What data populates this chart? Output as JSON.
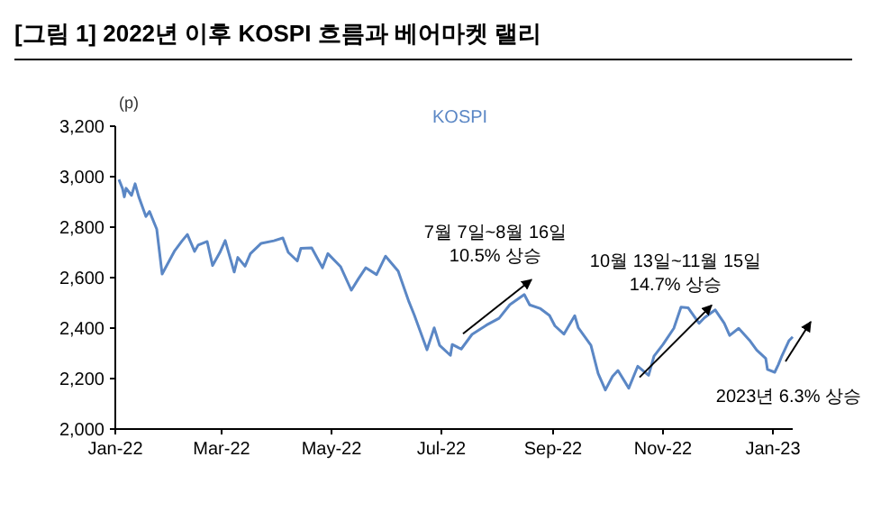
{
  "chart_data": {
    "type": "line",
    "title": "[그림 1] 2022년 이후 KOSPI 흐름과 베어마켓 랠리",
    "ylabel": "(p)",
    "x": [
      "2022-01-03",
      "2022-01-05",
      "2022-01-06",
      "2022-01-07",
      "2022-01-10",
      "2022-01-12",
      "2022-01-14",
      "2022-01-18",
      "2022-01-20",
      "2022-01-24",
      "2022-01-27",
      "2022-02-03",
      "2022-02-07",
      "2022-02-10",
      "2022-02-14",
      "2022-02-16",
      "2022-02-21",
      "2022-02-24",
      "2022-02-28",
      "2022-03-03",
      "2022-03-08",
      "2022-03-10",
      "2022-03-14",
      "2022-03-17",
      "2022-03-23",
      "2022-03-30",
      "2022-04-04",
      "2022-04-07",
      "2022-04-12",
      "2022-04-14",
      "2022-04-20",
      "2022-04-26",
      "2022-04-29",
      "2022-05-06",
      "2022-05-12",
      "2022-05-16",
      "2022-05-20",
      "2022-05-26",
      "2022-05-31",
      "2022-06-07",
      "2022-06-13",
      "2022-06-16",
      "2022-06-23",
      "2022-06-27",
      "2022-06-30",
      "2022-07-06",
      "2022-07-07",
      "2022-07-12",
      "2022-07-18",
      "2022-07-26",
      "2022-08-02",
      "2022-08-08",
      "2022-08-16",
      "2022-08-19",
      "2022-08-25",
      "2022-08-30",
      "2022-09-02",
      "2022-09-07",
      "2022-09-13",
      "2022-09-15",
      "2022-09-22",
      "2022-09-26",
      "2022-09-30",
      "2022-10-04",
      "2022-10-07",
      "2022-10-13",
      "2022-10-18",
      "2022-10-24",
      "2022-10-27",
      "2022-11-01",
      "2022-11-07",
      "2022-11-11",
      "2022-11-15",
      "2022-11-21",
      "2022-11-24",
      "2022-11-30",
      "2022-12-05",
      "2022-12-08",
      "2022-12-13",
      "2022-12-19",
      "2022-12-23",
      "2022-12-28",
      "2022-12-29",
      "2023-01-02",
      "2023-01-04",
      "2023-01-06",
      "2023-01-10",
      "2023-01-12"
    ],
    "series": [
      {
        "name": "KOSPI",
        "color": "#5b87c5",
        "values": [
          2989,
          2953,
          2920,
          2954,
          2926,
          2972,
          2921,
          2842,
          2862,
          2792,
          2614,
          2707,
          2745,
          2771,
          2704,
          2729,
          2743,
          2648,
          2699,
          2747,
          2622,
          2680,
          2645,
          2695,
          2736,
          2746,
          2757,
          2700,
          2666,
          2716,
          2718,
          2639,
          2695,
          2644,
          2550,
          2596,
          2639,
          2612,
          2685,
          2626,
          2504,
          2451,
          2314,
          2401,
          2332,
          2292,
          2335,
          2317,
          2375,
          2412,
          2439,
          2493,
          2533,
          2492,
          2477,
          2450,
          2409,
          2376,
          2449,
          2401,
          2332,
          2220,
          2155,
          2209,
          2232,
          2162,
          2249,
          2213,
          2289,
          2335,
          2399,
          2483,
          2480,
          2419,
          2441,
          2472,
          2419,
          2371,
          2399,
          2352,
          2313,
          2280,
          2236,
          2225,
          2255,
          2290,
          2351,
          2365
        ]
      }
    ],
    "xlim": [
      "2022-01-01",
      "2023-01-12"
    ],
    "xticks": [
      {
        "value": "2022-01-01",
        "label": "Jan-22"
      },
      {
        "value": "2022-03-01",
        "label": "Mar-22"
      },
      {
        "value": "2022-05-01",
        "label": "May-22"
      },
      {
        "value": "2022-07-01",
        "label": "Jul-22"
      },
      {
        "value": "2022-09-01",
        "label": "Sep-22"
      },
      {
        "value": "2022-11-01",
        "label": "Nov-22"
      },
      {
        "value": "2023-01-01",
        "label": "Jan-23"
      }
    ],
    "ylim": [
      2000,
      3200
    ],
    "yticks": [
      {
        "value": 2000,
        "label": "2,000"
      },
      {
        "value": 2200,
        "label": "2,200"
      },
      {
        "value": 2400,
        "label": "2,400"
      },
      {
        "value": 2600,
        "label": "2,600"
      },
      {
        "value": 2800,
        "label": "2,800"
      },
      {
        "value": 3000,
        "label": "3,000"
      },
      {
        "value": 3200,
        "label": "3,200"
      }
    ],
    "annotations": [
      {
        "text": "7월 7일~8월 16일\n10.5% 상승",
        "x": "2022-07-07",
        "y": 2335
      },
      {
        "text": "10월 13일~11월 15일\n14.7% 상승",
        "x": "2022-10-13",
        "y": 2162
      },
      {
        "text": "2023년 6.3% 상승",
        "x": "2023-01-02",
        "y": 2225
      }
    ]
  }
}
